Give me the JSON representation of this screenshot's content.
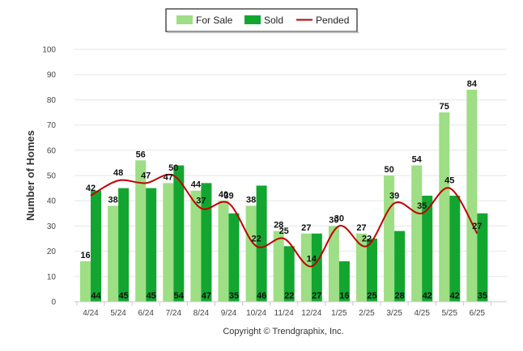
{
  "chart_data": {
    "type": "bar",
    "categories": [
      "4/24",
      "5/24",
      "6/24",
      "7/24",
      "8/24",
      "9/24",
      "10/24",
      "11/24",
      "12/24",
      "1/25",
      "2/25",
      "3/25",
      "4/25",
      "5/25",
      "6/25"
    ],
    "series": [
      {
        "name": "For Sale",
        "type": "bar",
        "color": "#9ede84",
        "values": [
          16,
          38,
          56,
          47,
          44,
          40,
          38,
          28,
          27,
          30,
          27,
          50,
          54,
          75,
          84
        ]
      },
      {
        "name": "Sold",
        "type": "bar",
        "color": "#12a630",
        "values": [
          44,
          45,
          45,
          54,
          47,
          35,
          46,
          22,
          27,
          16,
          25,
          28,
          42,
          42,
          35
        ]
      },
      {
        "name": "Pended",
        "type": "line",
        "color": "#c00000",
        "values": [
          42,
          48,
          47,
          50,
          37,
          39,
          22,
          25,
          14,
          30,
          22,
          39,
          35,
          45,
          27
        ]
      }
    ],
    "ylabel": "Number of Homes",
    "ylim": [
      0,
      100
    ],
    "yticks": [
      0,
      10,
      20,
      30,
      40,
      50,
      60,
      70,
      80,
      90,
      100
    ],
    "grid": true,
    "legend_position": "top-center"
  },
  "legend": {
    "for_sale_label": "For Sale",
    "sold_label": "Sold",
    "pended_label": "Pended"
  },
  "footer": {
    "copyright": "Copyright © Trendgraphix, Inc."
  }
}
